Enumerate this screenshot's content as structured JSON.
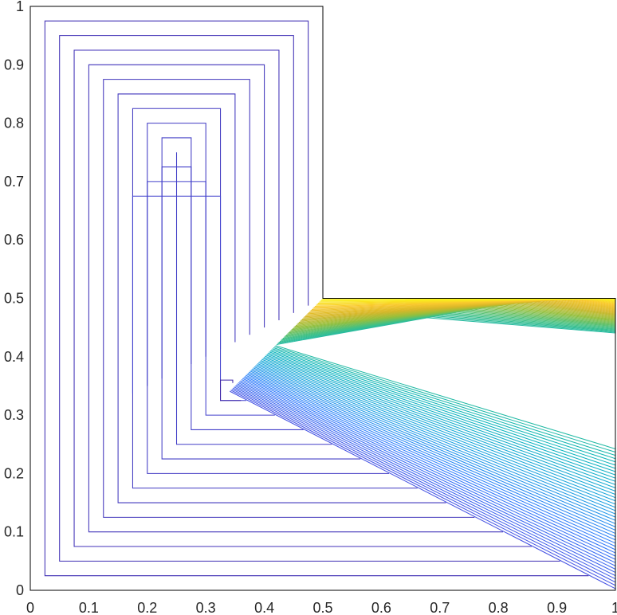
{
  "chart_data": {
    "type": "contour",
    "title": "",
    "xlabel": "",
    "ylabel": "",
    "xlim": [
      0,
      1
    ],
    "ylim": [
      0,
      1
    ],
    "grid": false,
    "legend": "none",
    "domain_polygon": [
      [
        0,
        0
      ],
      [
        1,
        0
      ],
      [
        1,
        0.5
      ],
      [
        0.5,
        0.5
      ],
      [
        0.5,
        1
      ],
      [
        0,
        1
      ]
    ],
    "x_ticks": [
      "0",
      "0.1",
      "0.2",
      "0.3",
      "0.4",
      "0.5",
      "0.6",
      "0.7",
      "0.8",
      "0.9",
      "1"
    ],
    "y_ticks": [
      "0",
      "0.1",
      "0.2",
      "0.3",
      "0.4",
      "0.5",
      "0.6",
      "0.7",
      "0.8",
      "0.9",
      "1"
    ],
    "singularity": [
      0.34,
      0.34
    ],
    "colormap": [
      "#3e26a8",
      "#4655e6",
      "#2f7dfc",
      "#1aa4df",
      "#0eb6bb",
      "#41c085",
      "#95bf3c",
      "#d6b728",
      "#f9c82e",
      "#f9fb15"
    ],
    "outer_inset": 0.025,
    "level_spacing": 0.025,
    "level_count": 13,
    "right_region_line_count": 88
  }
}
